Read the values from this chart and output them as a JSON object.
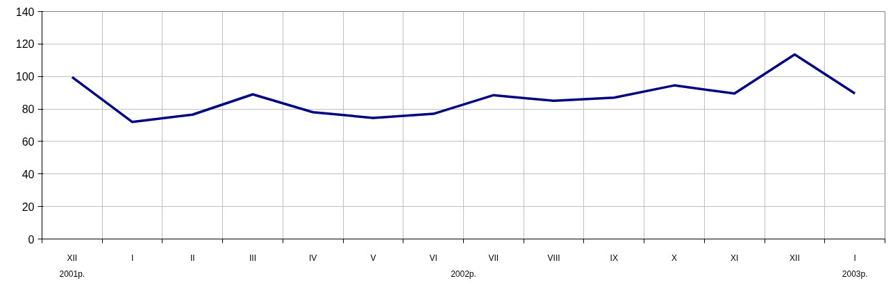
{
  "chart_data": {
    "type": "line",
    "categories": [
      "XII",
      "I",
      "II",
      "III",
      "IV",
      "V",
      "VI",
      "VII",
      "VIII",
      "IX",
      "X",
      "XI",
      "XII",
      "I"
    ],
    "series": [
      {
        "color": "#000080",
        "values": [
          99.6,
          72,
          76.5,
          89,
          78,
          74.5,
          77,
          88.5,
          85,
          87,
          94.5,
          89.5,
          113.5,
          89.5
        ]
      }
    ],
    "annotations": [
      "2001р.",
      "2002р.",
      "2003р."
    ],
    "ylim": [
      0,
      140
    ],
    "yticks": [
      0,
      20,
      40,
      60,
      80,
      100,
      120,
      140
    ],
    "grid": true,
    "marker": "none",
    "line_style": "solid"
  }
}
